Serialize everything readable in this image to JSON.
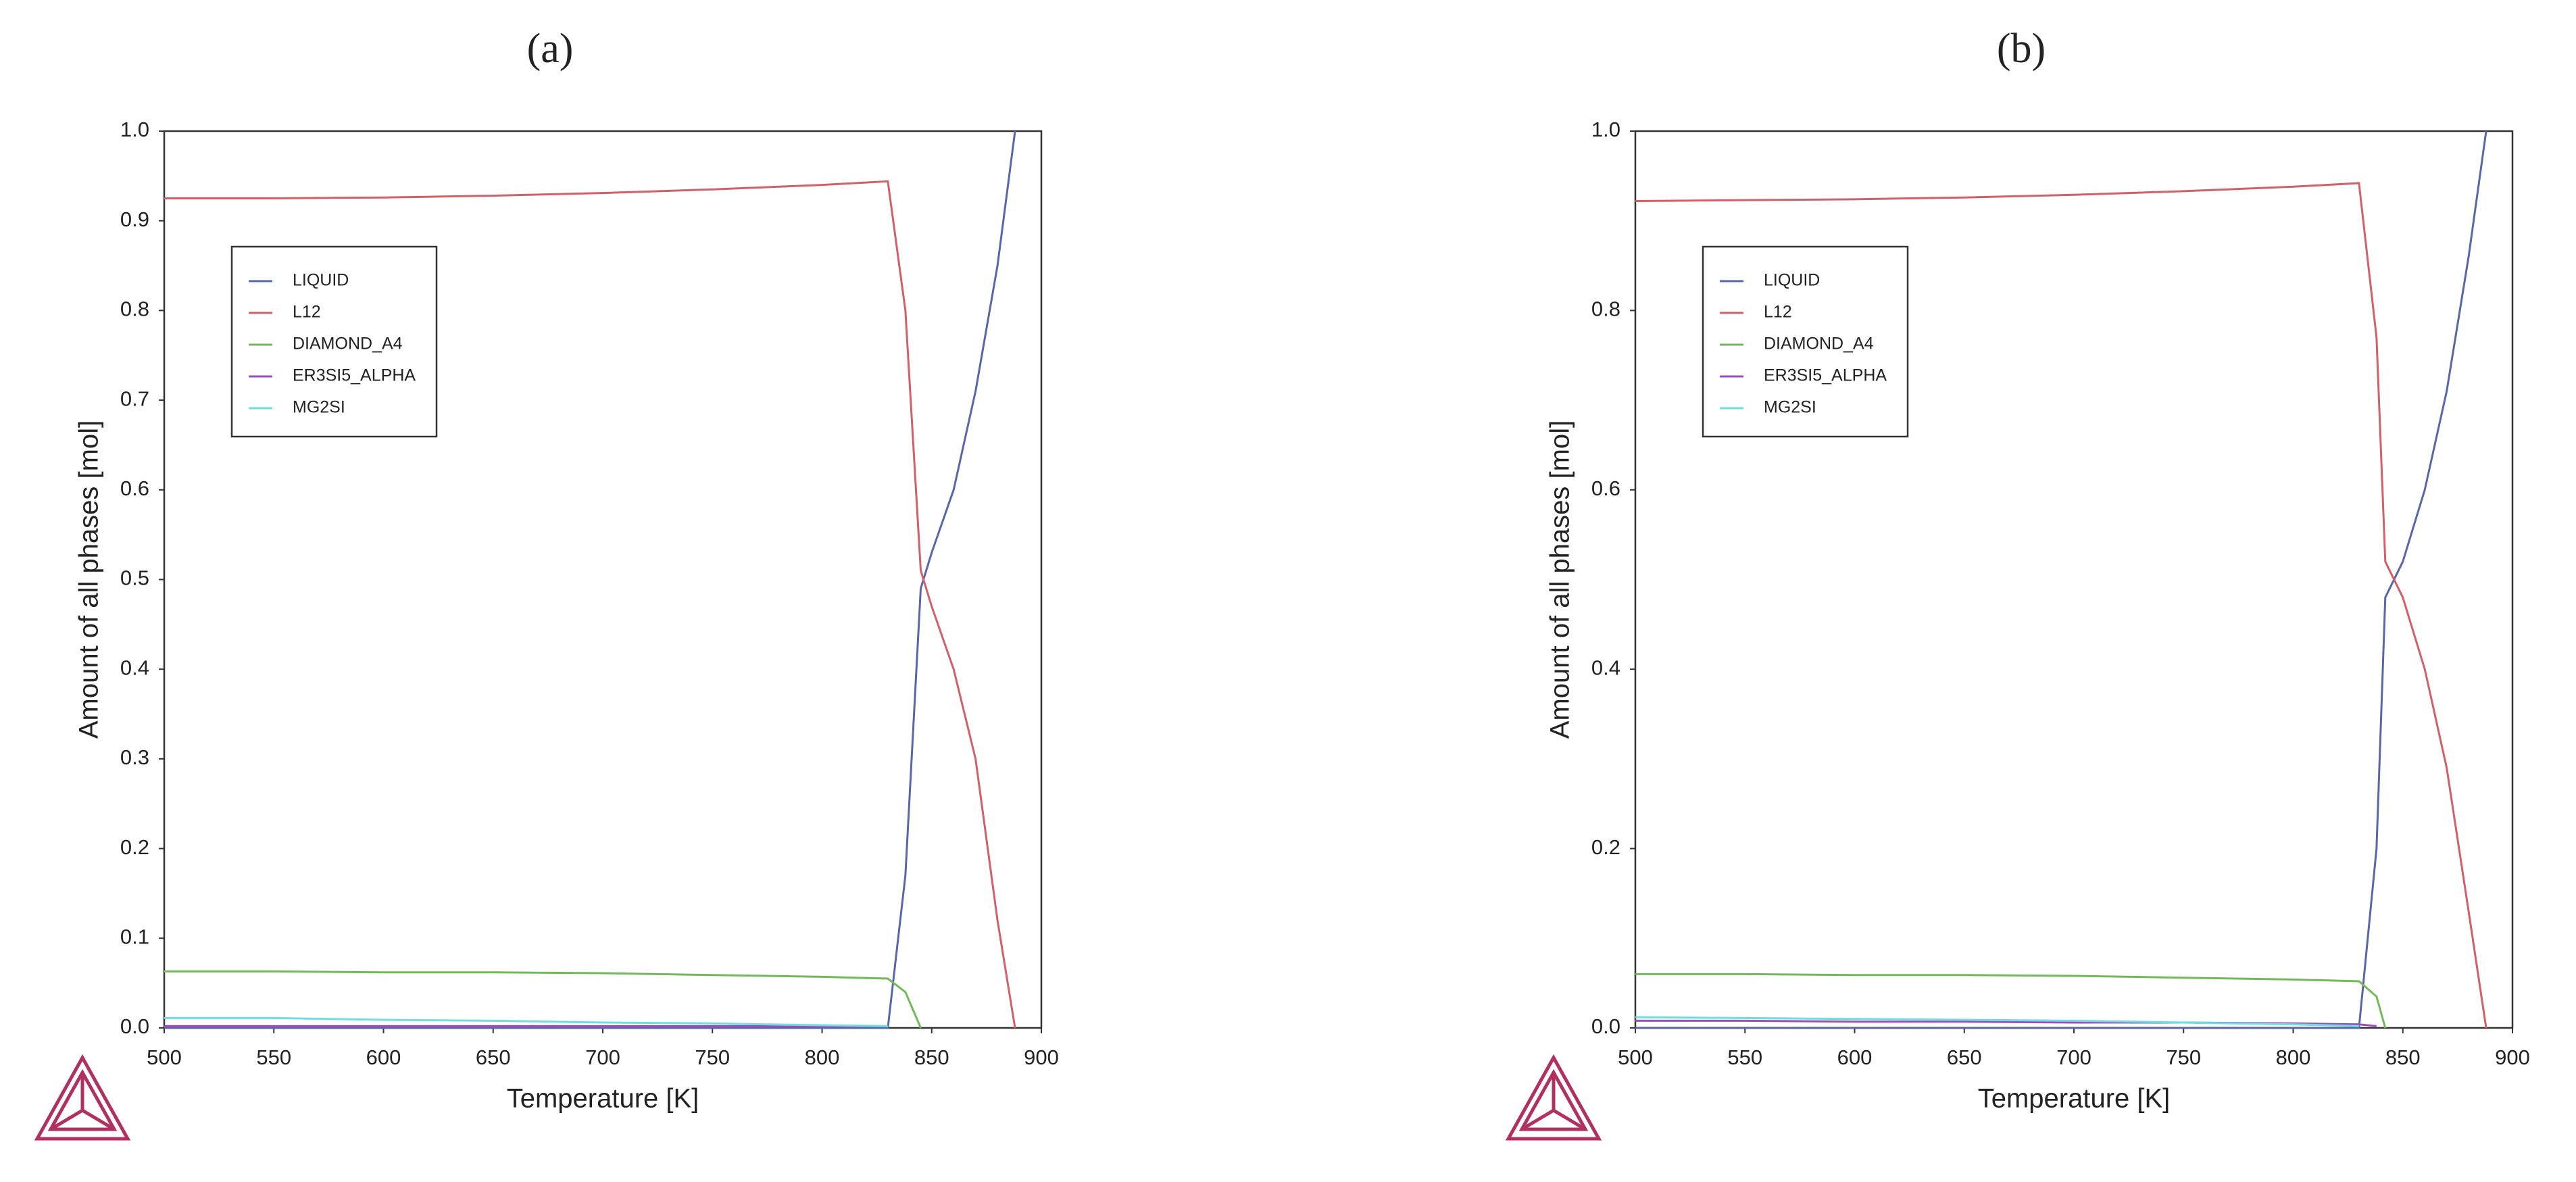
{
  "chart_data": [
    {
      "type": "line",
      "title": "(a)",
      "x_label": "Temperature [K]",
      "y_label": "Amount of all phases [mol]",
      "x": [
        500,
        550,
        600,
        650,
        700,
        750,
        800,
        830,
        838,
        845,
        850,
        860,
        870,
        880,
        888
      ],
      "series": [
        {
          "name": "LIQUID",
          "color": "#5a67a6",
          "values": [
            0,
            0,
            0,
            0,
            0,
            0,
            0,
            0,
            0.17,
            0.49,
            0.53,
            0.6,
            0.71,
            0.85,
            1.0
          ]
        },
        {
          "name": "L12",
          "color": "#d0606a",
          "values": [
            0.925,
            0.925,
            0.926,
            0.928,
            0.931,
            0.935,
            0.94,
            0.944,
            0.8,
            0.51,
            0.47,
            0.4,
            0.3,
            0.12,
            0
          ]
        },
        {
          "name": "DIAMOND_A4",
          "color": "#74b85c",
          "values": [
            0.063,
            0.063,
            0.062,
            0.062,
            0.061,
            0.059,
            0.057,
            0.055,
            0.04,
            0,
            null,
            null,
            null,
            null,
            null
          ]
        },
        {
          "name": "ER3SI5_ALPHA",
          "color": "#9c4cbc",
          "values": [
            0.002,
            0.002,
            0.002,
            0.002,
            0.002,
            0.002,
            0.002,
            0.002,
            null,
            null,
            null,
            null,
            null,
            null,
            null
          ]
        },
        {
          "name": "MG2SI",
          "color": "#6fdede",
          "values": [
            0.011,
            0.011,
            0.009,
            0.008,
            0.006,
            0.005,
            0.003,
            0.002,
            null,
            null,
            null,
            null,
            null,
            null,
            null
          ]
        }
      ],
      "xlim": [
        500,
        900
      ],
      "xticks": [
        500,
        550,
        600,
        650,
        700,
        750,
        800,
        850,
        900
      ],
      "ylim": [
        0,
        1
      ],
      "yticks": [
        {
          "value": 0,
          "label": "0.0"
        },
        0.1,
        0.2,
        0.3,
        0.4,
        0.5,
        0.6,
        0.7,
        0.8,
        0.9,
        {
          "value": 1,
          "label": "1.0"
        }
      ],
      "grid": false,
      "legend": "upper left"
    },
    {
      "type": "line",
      "title": "(b)",
      "x_label": "Temperature [K]",
      "y_label": "Amount of all phases [mol]",
      "x": [
        500,
        550,
        600,
        650,
        700,
        750,
        800,
        830,
        838,
        842,
        850,
        860,
        870,
        880,
        888
      ],
      "series": [
        {
          "name": "LIQUID",
          "color": "#5a67a6",
          "values": [
            0,
            0,
            0,
            0,
            0,
            0,
            0,
            0,
            0.2,
            0.48,
            0.52,
            0.6,
            0.71,
            0.86,
            1.0
          ]
        },
        {
          "name": "L12",
          "color": "#d0606a",
          "values": [
            0.922,
            0.923,
            0.924,
            0.926,
            0.929,
            0.933,
            0.938,
            0.942,
            0.77,
            0.52,
            0.48,
            0.4,
            0.29,
            0.13,
            0
          ]
        },
        {
          "name": "DIAMOND_A4",
          "color": "#74b85c",
          "values": [
            0.06,
            0.06,
            0.059,
            0.059,
            0.058,
            0.056,
            0.054,
            0.052,
            0.035,
            0,
            null,
            null,
            null,
            null,
            null
          ]
        },
        {
          "name": "ER3SI5_ALPHA",
          "color": "#9c4cbc",
          "values": [
            0.008,
            0.008,
            0.007,
            0.007,
            0.006,
            0.006,
            0.005,
            0.004,
            0.002,
            null,
            null,
            null,
            null,
            null,
            null
          ]
        },
        {
          "name": "MG2SI",
          "color": "#6fdede",
          "values": [
            0.012,
            0.011,
            0.01,
            0.009,
            0.008,
            0.006,
            0.004,
            0.002,
            null,
            null,
            null,
            null,
            null,
            null,
            null
          ]
        }
      ],
      "xlim": [
        500,
        900
      ],
      "xticks": [
        500,
        550,
        600,
        650,
        700,
        750,
        800,
        850,
        900
      ],
      "ylim": [
        0,
        1
      ],
      "yticks": [
        {
          "value": 0,
          "label": "0.0"
        },
        0.2,
        0.4,
        0.6,
        0.8,
        {
          "value": 1,
          "label": "1.0"
        }
      ],
      "grid": false,
      "legend": "upper left"
    }
  ]
}
